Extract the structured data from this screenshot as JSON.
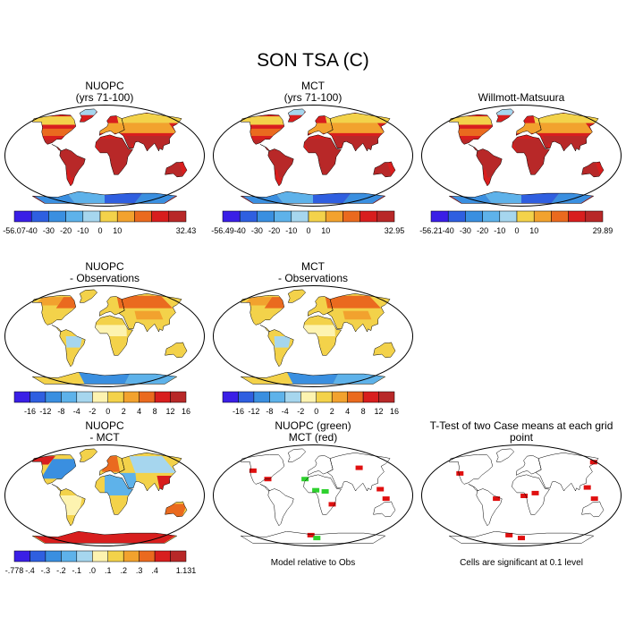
{
  "page": {
    "title": "SON TSA (C)"
  },
  "colors": {
    "temp_scale": [
      "#3a1fe6",
      "#2f5fe0",
      "#3a8fe0",
      "#5eb2ea",
      "#a6d6ee",
      "#f3d24a",
      "#f2a22e",
      "#ea6a1f",
      "#d81e1e",
      "#b82828"
    ],
    "diff_scale": [
      "#3a1fe6",
      "#2f5fe0",
      "#3a8fe0",
      "#5eb2ea",
      "#a6d6ee",
      "#fdf3b0",
      "#f3d24a",
      "#f2a22e",
      "#ea6a1f",
      "#d81e1e",
      "#b82828"
    ],
    "ocean": "#ffffff",
    "coast": "#000000",
    "green": "#2fd12f",
    "red": "#e01010"
  },
  "chart_data": [
    {
      "type": "heatmap",
      "title": "NUOPC\n(yrs 71-100)",
      "projection": "Robinson",
      "colorbar": {
        "min": "-56.07",
        "max": "32.43",
        "ticks": [
          "-40",
          "-30",
          "-20",
          "-10",
          "0",
          "10"
        ]
      }
    },
    {
      "type": "heatmap",
      "title": "MCT\n(yrs 71-100)",
      "projection": "Robinson",
      "colorbar": {
        "min": "-56.49",
        "max": "32.95",
        "ticks": [
          "-40",
          "-30",
          "-20",
          "-10",
          "0",
          "10"
        ]
      }
    },
    {
      "type": "heatmap",
      "title": "Willmott-Matsuura",
      "projection": "Robinson",
      "colorbar": {
        "min": "-56.21",
        "max": "29.89",
        "ticks": [
          "-40",
          "-30",
          "-20",
          "-10",
          "0",
          "10"
        ]
      }
    },
    {
      "type": "heatmap",
      "title": "NUOPC\n- Observations",
      "projection": "Robinson",
      "colorbar": {
        "ticks": [
          "-16",
          "-12",
          "-8",
          "-4",
          "-2",
          "0",
          "2",
          "4",
          "8",
          "12",
          "16"
        ]
      }
    },
    {
      "type": "heatmap",
      "title": "MCT\n- Observations",
      "projection": "Robinson",
      "colorbar": {
        "ticks": [
          "-16",
          "-12",
          "-8",
          "-4",
          "-2",
          "0",
          "2",
          "4",
          "8",
          "12",
          "16"
        ]
      }
    },
    {
      "type": "heatmap",
      "title": "NUOPC\n- MCT",
      "projection": "Robinson",
      "colorbar": {
        "min": "-.778",
        "max": "1.131",
        "ticks": [
          "-.4",
          "-.3",
          "-.2",
          "-.1",
          ".0",
          ".1",
          ".2",
          ".3",
          ".4"
        ]
      }
    },
    {
      "type": "heatmap",
      "title": "NUOPC (green)\nMCT (red)",
      "projection": "Robinson",
      "note": "Model relative to Obs"
    },
    {
      "type": "heatmap",
      "title": "T-Test of two Case means at each grid point",
      "projection": "Robinson",
      "note": "Cells are significant at 0.1 level"
    }
  ]
}
